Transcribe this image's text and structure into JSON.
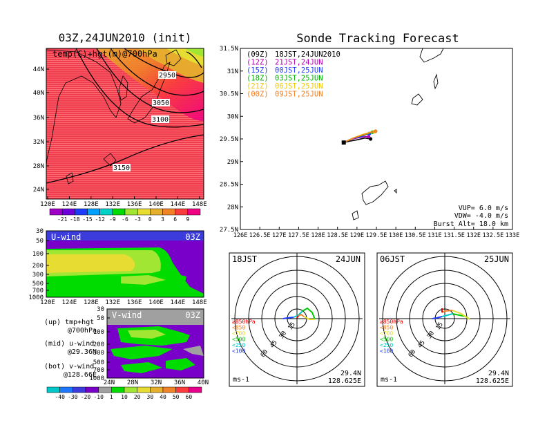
{
  "left_title": "03Z,24JUN2010 (init)",
  "right_title": "Sonde Tracking Forecast",
  "map_panel": {
    "label": "temp(C)+hgt(m)@700hPa",
    "lat_ticks": [
      "44N",
      "40N",
      "36N",
      "32N",
      "28N",
      "24N"
    ],
    "lon_ticks": [
      "120E",
      "124E",
      "128E",
      "132E",
      "136E",
      "140E",
      "144E",
      "148E"
    ],
    "contour_labels": [
      "2950",
      "3050",
      "3100",
      "3150"
    ],
    "colorbar_labels": [
      "-21",
      "-18",
      "-15",
      "-12",
      "-9",
      "-6",
      "-3",
      "0",
      "3",
      "6",
      "9"
    ],
    "colorbar_colors": [
      "#a000c8",
      "#6e00dc",
      "#1e3cff",
      "#00a0ff",
      "#00d2c8",
      "#00dc00",
      "#a0e632",
      "#e6dc32",
      "#e6af2d",
      "#f08228",
      "#fa3c3c",
      "#f00082"
    ]
  },
  "u_panel": {
    "label": "U-wind",
    "time": "03Z",
    "y_ticks": [
      "30",
      "50",
      "100",
      "200",
      "300",
      "500",
      "700",
      "1000"
    ],
    "x_ticks": [
      "120E",
      "124E",
      "128E",
      "132E",
      "136E",
      "140E",
      "144E",
      "148E"
    ]
  },
  "v_panel": {
    "label": "V-wind",
    "time": "03Z",
    "y_ticks": [
      "30",
      "50",
      "100",
      "200",
      "300",
      "500",
      "700",
      "1000"
    ],
    "x_ticks": [
      "24N",
      "28N",
      "32N",
      "36N",
      "40N"
    ]
  },
  "side_notes": [
    {
      "line1": "(up) tmp+hgt",
      "line2": "@700hPa"
    },
    {
      "line1": "(mid) u-wind",
      "line2": "@29.36N"
    },
    {
      "line1": "(bot) v-wind",
      "line2": "@128.66E"
    }
  ],
  "wind_colorbar": {
    "labels": [
      "-40",
      "-30",
      "-20",
      "-10",
      "1",
      "10",
      "20",
      "30",
      "40",
      "50",
      "60"
    ],
    "colors": [
      "#00c8c8",
      "#1e78ff",
      "#3c3cdc",
      "#7800c8",
      "#a0a0a0",
      "#00dc00",
      "#a0e632",
      "#e6dc32",
      "#e6af2d",
      "#f08228",
      "#fa3c3c",
      "#e6008c"
    ]
  },
  "track_panel": {
    "lat_ticks": [
      "31.5N",
      "31N",
      "30.5N",
      "30N",
      "29.5N",
      "29N",
      "28.5N",
      "28N",
      "27.5N"
    ],
    "lon_ticks": [
      "126E",
      "126.5E",
      "127E",
      "127.5E",
      "128E",
      "128.5E",
      "129E",
      "129.5E",
      "130E",
      "130.5E",
      "131E",
      "131.5E",
      "132E",
      "132.5E",
      "133E"
    ],
    "legend": [
      {
        "code": "(09Z)",
        "text": "18JST,24JUN2010",
        "color": "#000000"
      },
      {
        "code": "(12Z)",
        "text": "21JST,24JUN",
        "color": "#b400b4"
      },
      {
        "code": "(15Z)",
        "text": "00JST,25JUN",
        "color": "#1e3cff"
      },
      {
        "code": "(18Z)",
        "text": "03JST,25JUN",
        "color": "#00b400"
      },
      {
        "code": "(21Z)",
        "text": "06JST,25JUN",
        "color": "#f0c800"
      },
      {
        "code": "(00Z)",
        "text": "09JST,25JUN",
        "color": "#f08228"
      }
    ],
    "params": [
      "VUP=  6.0 m/s",
      "VDW= -4.0 m/s",
      "Burst Alt= 18.0 km"
    ]
  },
  "hodo_left": {
    "time": "18JST",
    "date": "24JUN",
    "ring_labels": [
      "15",
      "30",
      "45",
      "60"
    ],
    "legend": [
      {
        "text": "≥850hPa",
        "color": "#e60000"
      },
      {
        "text": "<850",
        "color": "#f08228"
      },
      {
        "text": "<700",
        "color": "#e6dc32"
      },
      {
        "text": "<500",
        "color": "#00c800"
      },
      {
        "text": "<250",
        "color": "#00c8c8"
      },
      {
        "text": "<100",
        "color": "#1e3cff"
      }
    ],
    "unit": "ms-1",
    "lat": "29.4N",
    "lon": "128.625E"
  },
  "hodo_right": {
    "time": "06JST",
    "date": "25JUN",
    "ring_labels": [
      "15",
      "30",
      "45",
      "60"
    ],
    "legend": [
      {
        "text": "≥850hPa",
        "color": "#e60000"
      },
      {
        "text": "<850",
        "color": "#f08228"
      },
      {
        "text": "<700",
        "color": "#e6dc32"
      },
      {
        "text": "<500",
        "color": "#00c800"
      },
      {
        "text": "<250",
        "color": "#00c8c8"
      },
      {
        "text": "<100",
        "color": "#1e3cff"
      }
    ],
    "unit": "ms-1",
    "lat": "29.4N",
    "lon": "128.625E"
  },
  "chart_data": [
    {
      "type": "heatmap",
      "title": "03Z,24JUN2010 (init)",
      "subtitle": "temp(C)+hgt(m)@700hPa",
      "xlim_deg_E": [
        120,
        149
      ],
      "ylim_deg_N": [
        22,
        47
      ],
      "contours_m": [
        2950,
        3050,
        3100,
        3150
      ],
      "color_levels_C": [
        -21,
        -18,
        -15,
        -12,
        -9,
        -6,
        -3,
        0,
        3,
        6,
        9
      ]
    },
    {
      "type": "heatmap",
      "title": "U-wind",
      "time": "03Z",
      "y_pressure_hPa": [
        1000,
        700,
        500,
        300,
        200,
        100,
        50,
        30
      ],
      "xlim_deg_E": [
        120,
        149
      ],
      "color_levels_ms": [
        -40,
        -30,
        -20,
        -10,
        1,
        10,
        20,
        30,
        40,
        50,
        60
      ]
    },
    {
      "type": "heatmap",
      "title": "V-wind",
      "time": "03Z",
      "y_pressure_hPa": [
        1000,
        700,
        500,
        300,
        200,
        100,
        50,
        30
      ],
      "xlim_deg_N": [
        24,
        40
      ],
      "color_levels_ms": [
        -40,
        -30,
        -20,
        -10,
        1,
        10,
        20,
        30,
        40,
        50,
        60
      ]
    },
    {
      "type": "line",
      "title": "Sonde Tracking Forecast",
      "xlim_deg_E": [
        126,
        133
      ],
      "ylim_deg_N": [
        27.5,
        31.5
      ],
      "launch": {
        "lon": 128.66,
        "lat": 29.42
      },
      "series": [
        {
          "name": "18JST,24JUN2010",
          "color": "#000000",
          "lon": [
            128.66,
            128.8,
            129.0,
            129.2,
            129.35
          ],
          "lat": [
            29.42,
            29.45,
            29.48,
            29.52,
            29.5
          ]
        },
        {
          "name": "21JST,24JUN",
          "color": "#b400b4",
          "lon": [
            128.66,
            128.8,
            129.0,
            129.2,
            129.3
          ],
          "lat": [
            29.42,
            29.48,
            29.52,
            29.55,
            29.55
          ]
        },
        {
          "name": "00JST,25JUN",
          "color": "#1e3cff",
          "lon": [
            128.66,
            128.85,
            129.1,
            129.25,
            129.32
          ],
          "lat": [
            29.42,
            29.5,
            29.55,
            29.6,
            29.62
          ]
        },
        {
          "name": "03JST,25JUN",
          "color": "#00b400",
          "lon": [
            128.66,
            128.9,
            129.15,
            129.3,
            129.4
          ],
          "lat": [
            29.42,
            29.52,
            29.58,
            29.62,
            29.65
          ]
        },
        {
          "name": "06JST,25JUN",
          "color": "#f0c800",
          "lon": [
            128.66,
            128.9,
            129.15,
            129.35,
            129.45
          ],
          "lat": [
            29.42,
            29.52,
            29.6,
            29.65,
            29.66
          ]
        },
        {
          "name": "09JST,25JUN",
          "color": "#f08228",
          "lon": [
            128.66,
            128.95,
            129.2,
            129.38,
            129.48
          ],
          "lat": [
            29.42,
            29.53,
            29.6,
            29.65,
            29.67
          ]
        }
      ]
    }
  ]
}
